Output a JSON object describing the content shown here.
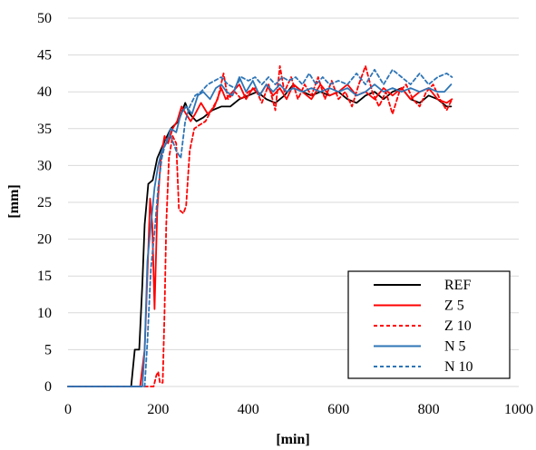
{
  "chart_data": {
    "type": "line",
    "title": "",
    "xlabel": "[min]",
    "ylabel": "[mm]",
    "xlim": [
      0,
      1000
    ],
    "ylim": [
      0,
      50
    ],
    "x_ticks": [
      "0",
      "200",
      "400",
      "600",
      "800",
      "1000"
    ],
    "y_ticks": [
      "0",
      "5",
      "10",
      "15",
      "20",
      "25",
      "30",
      "35",
      "40",
      "45",
      "50"
    ],
    "grid": "horizontal",
    "legend_position": "bottom-right",
    "series": [
      {
        "name": "REF",
        "color": "#000000",
        "dash": "solid",
        "points": [
          [
            0,
            0
          ],
          [
            140,
            0
          ],
          [
            148,
            5
          ],
          [
            158,
            5
          ],
          [
            165,
            14
          ],
          [
            170,
            22
          ],
          [
            178,
            27.5
          ],
          [
            188,
            28
          ],
          [
            198,
            31
          ],
          [
            212,
            33
          ],
          [
            228,
            35
          ],
          [
            245,
            36
          ],
          [
            260,
            38.5
          ],
          [
            270,
            37
          ],
          [
            285,
            36
          ],
          [
            300,
            36.5
          ],
          [
            320,
            37.5
          ],
          [
            340,
            38
          ],
          [
            360,
            38
          ],
          [
            380,
            39
          ],
          [
            400,
            39.5
          ],
          [
            420,
            40
          ],
          [
            440,
            39
          ],
          [
            460,
            38.5
          ],
          [
            480,
            39.5
          ],
          [
            500,
            41
          ],
          [
            520,
            40
          ],
          [
            540,
            39.5
          ],
          [
            560,
            40
          ],
          [
            580,
            39.5
          ],
          [
            600,
            40
          ],
          [
            620,
            39
          ],
          [
            640,
            38.5
          ],
          [
            660,
            39.5
          ],
          [
            680,
            40
          ],
          [
            700,
            39
          ],
          [
            720,
            40
          ],
          [
            740,
            40.5
          ],
          [
            760,
            39
          ],
          [
            780,
            38.5
          ],
          [
            800,
            39.5
          ],
          [
            820,
            39
          ],
          [
            840,
            38
          ],
          [
            850,
            38
          ]
        ]
      },
      {
        "name": "Z 5",
        "color": "#ff0000",
        "dash": "solid",
        "points": [
          [
            0,
            0
          ],
          [
            160,
            0
          ],
          [
            170,
            5
          ],
          [
            176,
            15
          ],
          [
            182,
            25.5
          ],
          [
            187,
            22
          ],
          [
            192,
            10.5
          ],
          [
            198,
            24
          ],
          [
            206,
            31
          ],
          [
            214,
            34
          ],
          [
            222,
            33
          ],
          [
            232,
            35
          ],
          [
            242,
            36
          ],
          [
            252,
            38
          ],
          [
            262,
            37
          ],
          [
            272,
            36
          ],
          [
            282,
            37
          ],
          [
            295,
            38.5
          ],
          [
            310,
            37
          ],
          [
            325,
            38
          ],
          [
            340,
            40.5
          ],
          [
            350,
            39
          ],
          [
            365,
            40
          ],
          [
            380,
            41
          ],
          [
            395,
            39
          ],
          [
            410,
            40.5
          ],
          [
            425,
            39.5
          ],
          [
            440,
            41
          ],
          [
            455,
            39.5
          ],
          [
            470,
            40.5
          ],
          [
            485,
            39
          ],
          [
            500,
            41
          ],
          [
            520,
            40
          ],
          [
            540,
            39
          ],
          [
            560,
            41
          ],
          [
            580,
            39.5
          ],
          [
            600,
            40
          ],
          [
            620,
            41
          ],
          [
            640,
            39.5
          ],
          [
            660,
            40
          ],
          [
            680,
            39
          ],
          [
            700,
            40.5
          ],
          [
            720,
            39.5
          ],
          [
            740,
            40.5
          ],
          [
            760,
            39
          ],
          [
            780,
            40
          ],
          [
            800,
            40.5
          ],
          [
            820,
            39
          ],
          [
            840,
            38.5
          ],
          [
            852,
            39
          ]
        ]
      },
      {
        "name": "Z 10",
        "color": "#ff0000",
        "dash": "dashed",
        "points": [
          [
            0,
            0
          ],
          [
            190,
            0
          ],
          [
            196,
            1.5
          ],
          [
            200,
            2
          ],
          [
            204,
            0.5
          ],
          [
            210,
            0.5
          ],
          [
            214,
            10
          ],
          [
            218,
            22
          ],
          [
            224,
            31
          ],
          [
            232,
            34
          ],
          [
            240,
            33
          ],
          [
            246,
            24
          ],
          [
            256,
            23.5
          ],
          [
            262,
            24.5
          ],
          [
            270,
            32
          ],
          [
            280,
            35
          ],
          [
            292,
            35.5
          ],
          [
            305,
            36
          ],
          [
            318,
            37.5
          ],
          [
            332,
            39
          ],
          [
            345,
            42.5
          ],
          [
            355,
            39
          ],
          [
            370,
            40
          ],
          [
            385,
            39
          ],
          [
            400,
            40
          ],
          [
            415,
            40.5
          ],
          [
            430,
            38.5
          ],
          [
            445,
            41
          ],
          [
            460,
            37.5
          ],
          [
            470,
            43.5
          ],
          [
            480,
            40
          ],
          [
            495,
            42
          ],
          [
            510,
            39
          ],
          [
            525,
            41
          ],
          [
            540,
            39.5
          ],
          [
            555,
            42
          ],
          [
            570,
            39
          ],
          [
            585,
            41.5
          ],
          [
            600,
            39
          ],
          [
            615,
            40
          ],
          [
            630,
            38
          ],
          [
            645,
            41
          ],
          [
            660,
            43.5
          ],
          [
            675,
            40
          ],
          [
            690,
            38
          ],
          [
            705,
            40
          ],
          [
            720,
            37
          ],
          [
            735,
            40
          ],
          [
            750,
            41
          ],
          [
            765,
            39
          ],
          [
            780,
            38
          ],
          [
            795,
            40
          ],
          [
            810,
            41
          ],
          [
            825,
            39
          ],
          [
            840,
            37.5
          ],
          [
            852,
            39
          ]
        ]
      },
      {
        "name": "N 5",
        "color": "#2e75b6",
        "dash": "solid",
        "points": [
          [
            0,
            0
          ],
          [
            165,
            0
          ],
          [
            170,
            5
          ],
          [
            176,
            17
          ],
          [
            184,
            22
          ],
          [
            192,
            27
          ],
          [
            200,
            30
          ],
          [
            208,
            32
          ],
          [
            218,
            33
          ],
          [
            228,
            35
          ],
          [
            240,
            34.5
          ],
          [
            250,
            37
          ],
          [
            262,
            38
          ],
          [
            275,
            37
          ],
          [
            288,
            39.5
          ],
          [
            300,
            40
          ],
          [
            315,
            39
          ],
          [
            328,
            40.5
          ],
          [
            340,
            41
          ],
          [
            352,
            40
          ],
          [
            365,
            39.5
          ],
          [
            380,
            42
          ],
          [
            395,
            40
          ],
          [
            410,
            41.5
          ],
          [
            425,
            39.5
          ],
          [
            440,
            41
          ],
          [
            455,
            40
          ],
          [
            470,
            41
          ],
          [
            485,
            40
          ],
          [
            500,
            40.5
          ],
          [
            520,
            40
          ],
          [
            540,
            40.5
          ],
          [
            560,
            40
          ],
          [
            580,
            40.5
          ],
          [
            600,
            40
          ],
          [
            620,
            40.5
          ],
          [
            640,
            39.5
          ],
          [
            660,
            40
          ],
          [
            680,
            41
          ],
          [
            700,
            40
          ],
          [
            720,
            40.5
          ],
          [
            740,
            40
          ],
          [
            760,
            40.5
          ],
          [
            780,
            40
          ],
          [
            800,
            40.5
          ],
          [
            820,
            40
          ],
          [
            835,
            40
          ],
          [
            850,
            41
          ]
        ]
      },
      {
        "name": "N 10",
        "color": "#2e75b6",
        "dash": "dashed",
        "points": [
          [
            0,
            0
          ],
          [
            170,
            0
          ],
          [
            176,
            6
          ],
          [
            184,
            16
          ],
          [
            192,
            21
          ],
          [
            200,
            27
          ],
          [
            208,
            31
          ],
          [
            218,
            33.5
          ],
          [
            228,
            34
          ],
          [
            240,
            32
          ],
          [
            250,
            31
          ],
          [
            260,
            36
          ],
          [
            270,
            38
          ],
          [
            282,
            39.5
          ],
          [
            295,
            40
          ],
          [
            310,
            41
          ],
          [
            325,
            41.5
          ],
          [
            340,
            42
          ],
          [
            355,
            41
          ],
          [
            370,
            40.5
          ],
          [
            385,
            42
          ],
          [
            400,
            41.5
          ],
          [
            415,
            42
          ],
          [
            430,
            41
          ],
          [
            445,
            42
          ],
          [
            460,
            41
          ],
          [
            475,
            42
          ],
          [
            490,
            41.5
          ],
          [
            505,
            42
          ],
          [
            520,
            41
          ],
          [
            535,
            42.5
          ],
          [
            550,
            41
          ],
          [
            565,
            42
          ],
          [
            580,
            41
          ],
          [
            600,
            41.5
          ],
          [
            620,
            41
          ],
          [
            640,
            42.5
          ],
          [
            660,
            41
          ],
          [
            680,
            43
          ],
          [
            700,
            41
          ],
          [
            720,
            43
          ],
          [
            740,
            42
          ],
          [
            760,
            41
          ],
          [
            780,
            42.5
          ],
          [
            800,
            41
          ],
          [
            820,
            42
          ],
          [
            840,
            42.5
          ],
          [
            852,
            42
          ]
        ]
      }
    ]
  }
}
